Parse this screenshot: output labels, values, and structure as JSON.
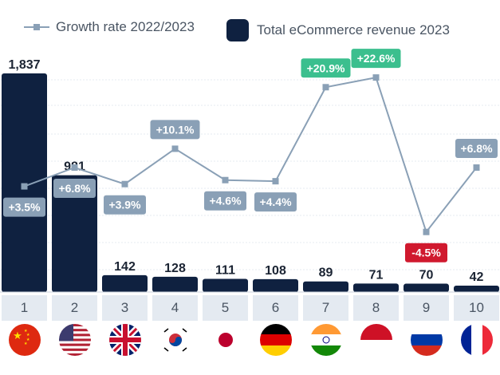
{
  "chart_data": {
    "type": "bar+line",
    "legend": {
      "line_label": "Growth rate 2022/2023",
      "bar_label": "Total eCommerce revenue 2023"
    },
    "categories": [
      "1",
      "2",
      "3",
      "4",
      "5",
      "6",
      "7",
      "8",
      "9",
      "10"
    ],
    "countries": [
      "China",
      "United States",
      "United Kingdom",
      "South Korea",
      "Japan",
      "Germany",
      "India",
      "Indonesia",
      "Russia",
      "France"
    ],
    "revenue": [
      1837,
      981,
      142,
      128,
      111,
      108,
      89,
      71,
      70,
      42
    ],
    "revenue_labels": [
      "1,837",
      "981",
      "142",
      "128",
      "111",
      "108",
      "89",
      "71",
      "70",
      "42"
    ],
    "growth": [
      3.5,
      6.8,
      3.9,
      10.1,
      4.6,
      4.4,
      20.9,
      22.6,
      -4.5,
      6.8
    ],
    "growth_labels": [
      "+3.5%",
      "+6.8%",
      "+3.9%",
      "+10.1%",
      "+4.6%",
      "+4.4%",
      "+20.9%",
      "+22.6%",
      "-4.5%",
      "+6.8%"
    ],
    "colors": {
      "bar": "#0f2140",
      "line": "#8aa0b6",
      "label_default": "#8aa0b6",
      "label_high": "#3bbf8e",
      "label_negative": "#d0192e"
    }
  }
}
